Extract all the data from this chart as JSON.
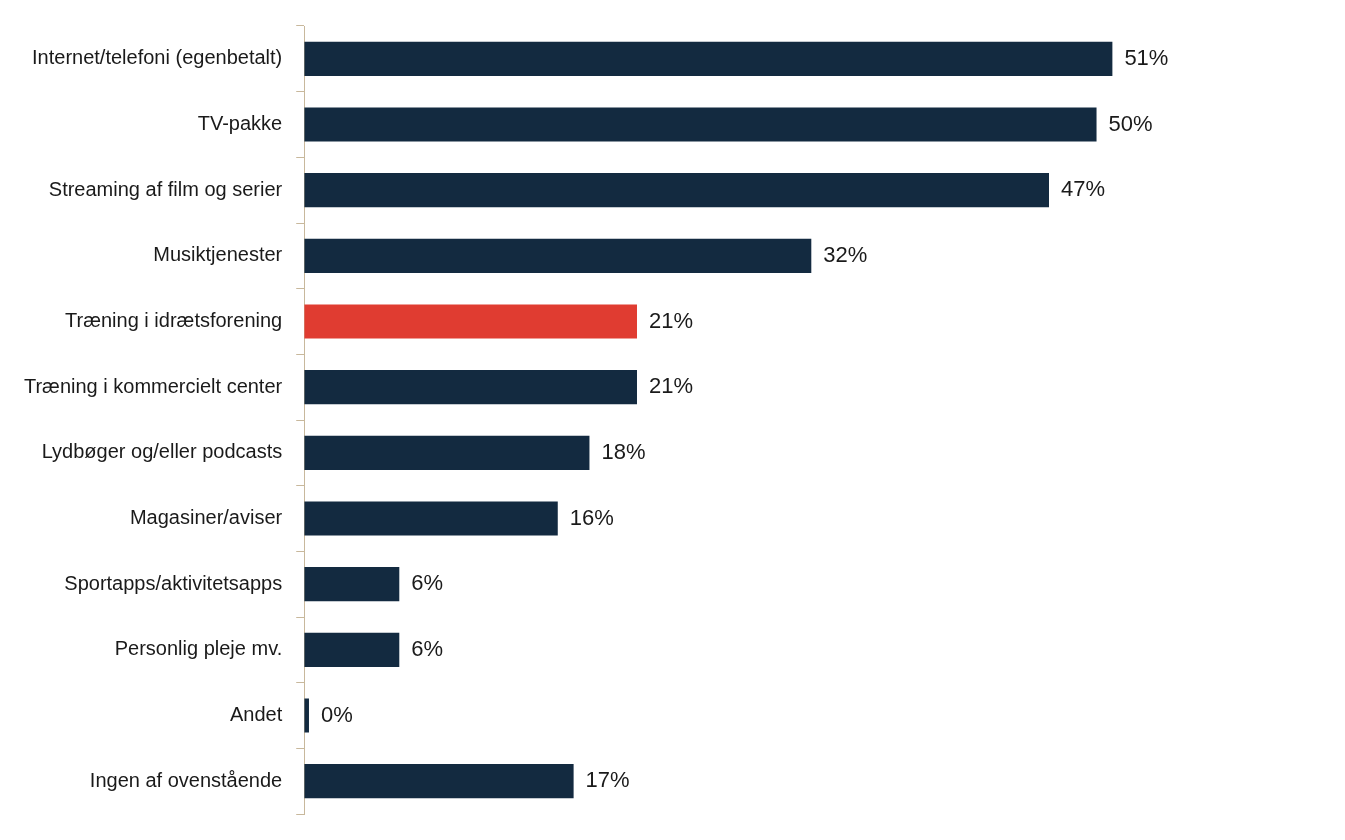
{
  "chart_data": {
    "type": "bar",
    "orientation": "horizontal",
    "categories": [
      "Internet/telefoni (egenbetalt)",
      "TV-pakke",
      "Streaming af film og serier",
      "Musiktjenester",
      "Træning i idrætsforening",
      "Træning i kommercielt center",
      "Lydbøger og/eller podcasts",
      "Magasiner/aviser",
      "Sportapps/aktivitetsapps",
      "Personlig pleje mv.",
      "Andet",
      "Ingen af ovenstående"
    ],
    "values": [
      51,
      50,
      47,
      32,
      21,
      21,
      18,
      16,
      6,
      6,
      0.3,
      17
    ],
    "colors": [
      "#132a40",
      "#132a40",
      "#132a40",
      "#132a40",
      "#e03c31",
      "#132a40",
      "#132a40",
      "#132a40",
      "#132a40",
      "#132a40",
      "#132a40",
      "#132a40"
    ],
    "value_labels": [
      "51%",
      "50%",
      "47%",
      "32%",
      "21%",
      "21%",
      "18%",
      "16%",
      "6%",
      "6%",
      "0%",
      "17%"
    ]
  }
}
